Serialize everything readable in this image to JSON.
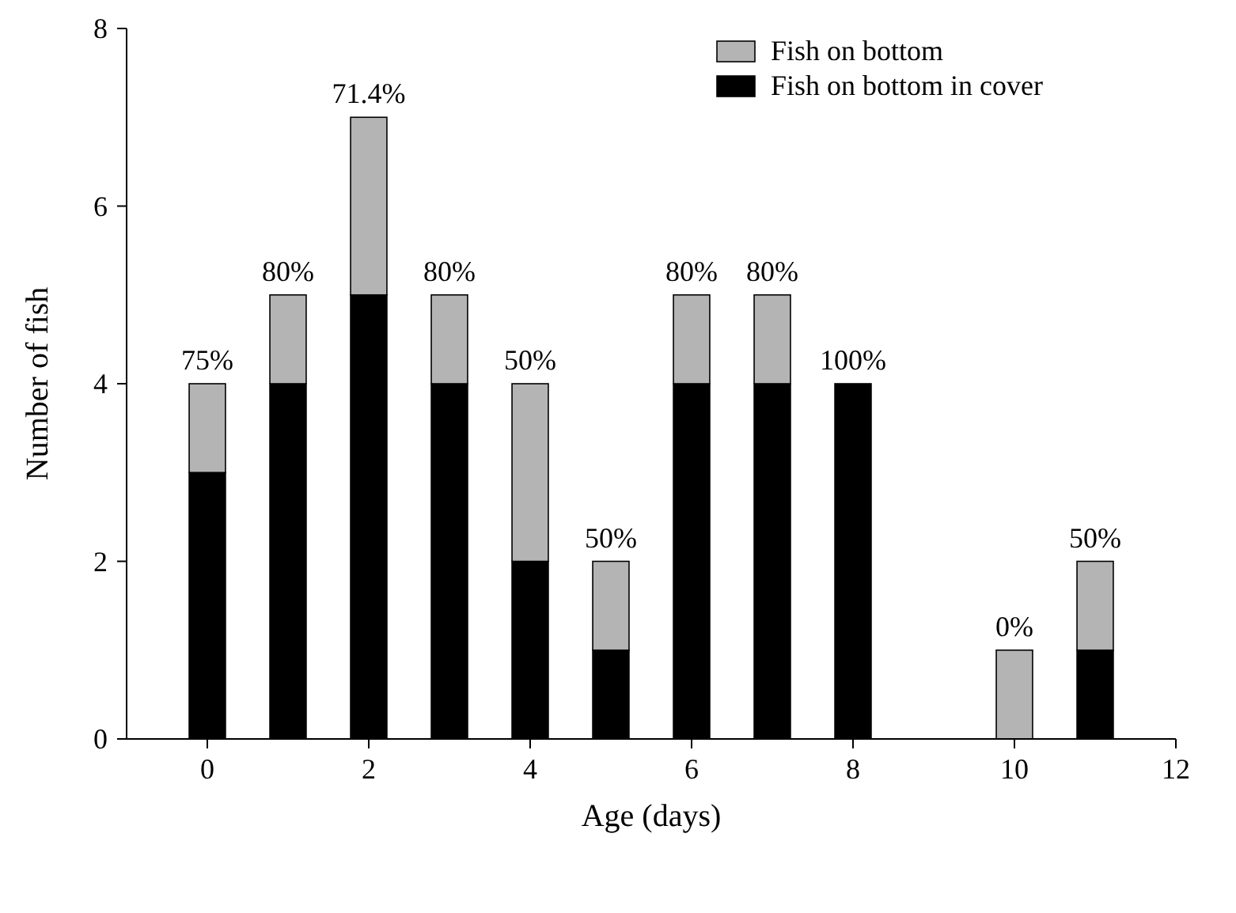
{
  "chart_data": {
    "type": "bar",
    "stacked": true,
    "xlabel": "Age (days)",
    "ylabel": "Number of fish",
    "x": [
      0,
      1,
      2,
      3,
      4,
      5,
      6,
      7,
      8,
      10,
      11
    ],
    "series": [
      {
        "name": "Fish on bottom in cover",
        "color": "#000000",
        "values": [
          3,
          4,
          5,
          4,
          2,
          1,
          4,
          4,
          4,
          0,
          1
        ]
      },
      {
        "name": "Fish on bottom",
        "color": "#b4b4b4",
        "values": [
          1,
          1,
          2,
          1,
          2,
          1,
          1,
          1,
          0,
          1,
          1
        ]
      }
    ],
    "xlim": [
      -1,
      12
    ],
    "xticks": [
      0,
      2,
      4,
      6,
      8,
      10,
      12
    ],
    "ylim": [
      0,
      8
    ],
    "yticks": [
      0,
      2,
      4,
      6,
      8
    ],
    "legend": "top right",
    "annotations": [
      {
        "text": "75%",
        "x": 0,
        "y": 4
      },
      {
        "text": "80%",
        "x": 1,
        "y": 5
      },
      {
        "text": "71.4%",
        "x": 2,
        "y": 7
      },
      {
        "text": "80%",
        "x": 3,
        "y": 5
      },
      {
        "text": "50%",
        "x": 4,
        "y": 4
      },
      {
        "text": "50%",
        "x": 5,
        "y": 2
      },
      {
        "text": "80%",
        "x": 6,
        "y": 5
      },
      {
        "text": "80%",
        "x": 7,
        "y": 5
      },
      {
        "text": "100%",
        "x": 8,
        "y": 4
      },
      {
        "text": "0%",
        "x": 10,
        "y": 1
      },
      {
        "text": "50%",
        "x": 11,
        "y": 2
      }
    ]
  }
}
